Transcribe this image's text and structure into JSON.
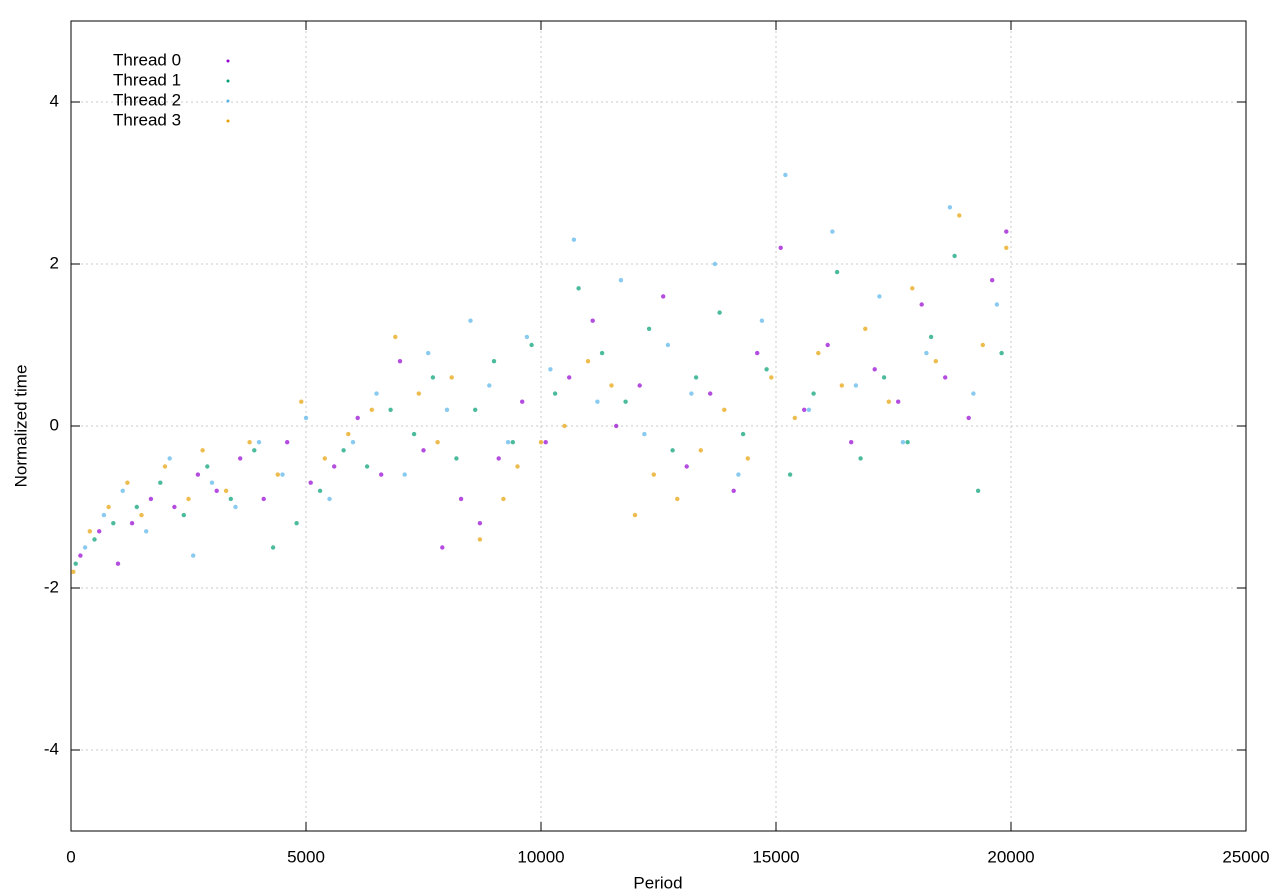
{
  "chart_data": {
    "type": "scatter",
    "x_label": "Period",
    "y_label": "Normalized time",
    "xlim": [
      0,
      25000
    ],
    "ylim": [
      -5,
      5
    ],
    "xticks": [
      0,
      5000,
      10000,
      15000,
      20000,
      25000
    ],
    "yticks": [
      -4,
      -2,
      0,
      2,
      4
    ],
    "grid": true,
    "legend": "top-left",
    "series": [
      {
        "name": "Thread 0",
        "color": "#9400d3",
        "x": [
          200,
          600,
          1000,
          1300,
          1700,
          2200,
          2700,
          3100,
          3600,
          4100,
          4600,
          5100,
          5600,
          6100,
          6600,
          7000,
          7500,
          7900,
          8300,
          8700,
          9100,
          9600,
          10100,
          10600,
          11100,
          11600,
          12100,
          12600,
          13100,
          13600,
          14100,
          14600,
          15100,
          15600,
          16100,
          16600,
          17100,
          17600,
          18100,
          18600,
          19100,
          19600,
          19900
        ],
        "values": [
          -1.6,
          -1.3,
          -1.7,
          -1.2,
          -0.9,
          -1.0,
          -0.6,
          -0.8,
          -0.4,
          -0.9,
          -0.2,
          -0.7,
          -0.5,
          0.1,
          -0.6,
          0.8,
          -0.3,
          -1.5,
          -0.9,
          -1.2,
          -0.4,
          0.3,
          -0.2,
          0.6,
          1.3,
          0.0,
          0.5,
          1.6,
          -0.5,
          0.4,
          -0.8,
          0.9,
          2.2,
          0.2,
          1.0,
          -0.2,
          0.7,
          0.3,
          1.5,
          0.6,
          0.1,
          1.8,
          2.4
        ]
      },
      {
        "name": "Thread 1",
        "color": "#009e73",
        "x": [
          100,
          500,
          900,
          1400,
          1900,
          2400,
          2900,
          3400,
          3900,
          4300,
          4800,
          5300,
          5800,
          6300,
          6800,
          7300,
          7700,
          8200,
          8600,
          9000,
          9400,
          9800,
          10300,
          10800,
          11300,
          11800,
          12300,
          12800,
          13300,
          13800,
          14300,
          14800,
          15300,
          15800,
          16300,
          16800,
          17300,
          17800,
          18300,
          18800,
          19300,
          19800
        ],
        "values": [
          -1.7,
          -1.4,
          -1.2,
          -1.0,
          -0.7,
          -1.1,
          -0.5,
          -0.9,
          -0.3,
          -1.5,
          -1.2,
          -0.8,
          -0.3,
          -0.5,
          0.2,
          -0.1,
          0.6,
          -0.4,
          0.2,
          0.8,
          -0.2,
          1.0,
          0.4,
          1.7,
          0.9,
          0.3,
          1.2,
          -0.3,
          0.6,
          1.4,
          -0.1,
          0.7,
          -0.6,
          0.4,
          1.9,
          -0.4,
          0.6,
          -0.2,
          1.1,
          2.1,
          -0.8,
          0.9
        ]
      },
      {
        "name": "Thread 2",
        "color": "#56b4e9",
        "x": [
          300,
          700,
          1100,
          1600,
          2100,
          2600,
          3000,
          3500,
          4000,
          4500,
          5000,
          5500,
          6000,
          6500,
          7100,
          7600,
          8000,
          8500,
          8900,
          9300,
          9700,
          10200,
          10700,
          11200,
          11700,
          12200,
          12700,
          13200,
          13700,
          14200,
          14700,
          15200,
          15700,
          16200,
          16700,
          17200,
          17700,
          18200,
          18700,
          19200,
          19700
        ],
        "values": [
          -1.5,
          -1.1,
          -0.8,
          -1.3,
          -0.4,
          -1.6,
          -0.7,
          -1.0,
          -0.2,
          -0.6,
          0.1,
          -0.9,
          -0.2,
          0.4,
          -0.6,
          0.9,
          0.2,
          1.3,
          0.5,
          -0.2,
          1.1,
          0.7,
          2.3,
          0.3,
          1.8,
          -0.1,
          1.0,
          0.4,
          2.0,
          -0.6,
          1.3,
          3.1,
          0.2,
          2.4,
          0.5,
          1.6,
          -0.2,
          0.9,
          2.7,
          0.4,
          1.5
        ]
      },
      {
        "name": "Thread 3",
        "color": "#e69f00",
        "x": [
          50,
          400,
          800,
          1200,
          1500,
          2000,
          2500,
          2800,
          3300,
          3800,
          4400,
          4900,
          5400,
          5900,
          6400,
          6900,
          7400,
          7800,
          8100,
          8700,
          9200,
          9500,
          10000,
          10500,
          11000,
          11500,
          12000,
          12400,
          12900,
          13400,
          13900,
          14400,
          14900,
          15400,
          15900,
          16400,
          16900,
          17400,
          17900,
          18400,
          18900,
          19400,
          19900
        ],
        "values": [
          -1.8,
          -1.3,
          -1.0,
          -0.7,
          -1.1,
          -0.5,
          -0.9,
          -0.3,
          -0.8,
          -0.2,
          -0.6,
          0.3,
          -0.4,
          -0.1,
          0.2,
          1.1,
          0.4,
          -0.2,
          0.6,
          -1.4,
          -0.9,
          -0.5,
          -0.2,
          0.0,
          0.8,
          0.5,
          -1.1,
          -0.6,
          -0.9,
          -0.3,
          0.2,
          -0.4,
          0.6,
          0.1,
          0.9,
          0.5,
          1.2,
          0.3,
          1.7,
          0.8,
          2.6,
          1.0,
          2.2
        ]
      }
    ]
  }
}
